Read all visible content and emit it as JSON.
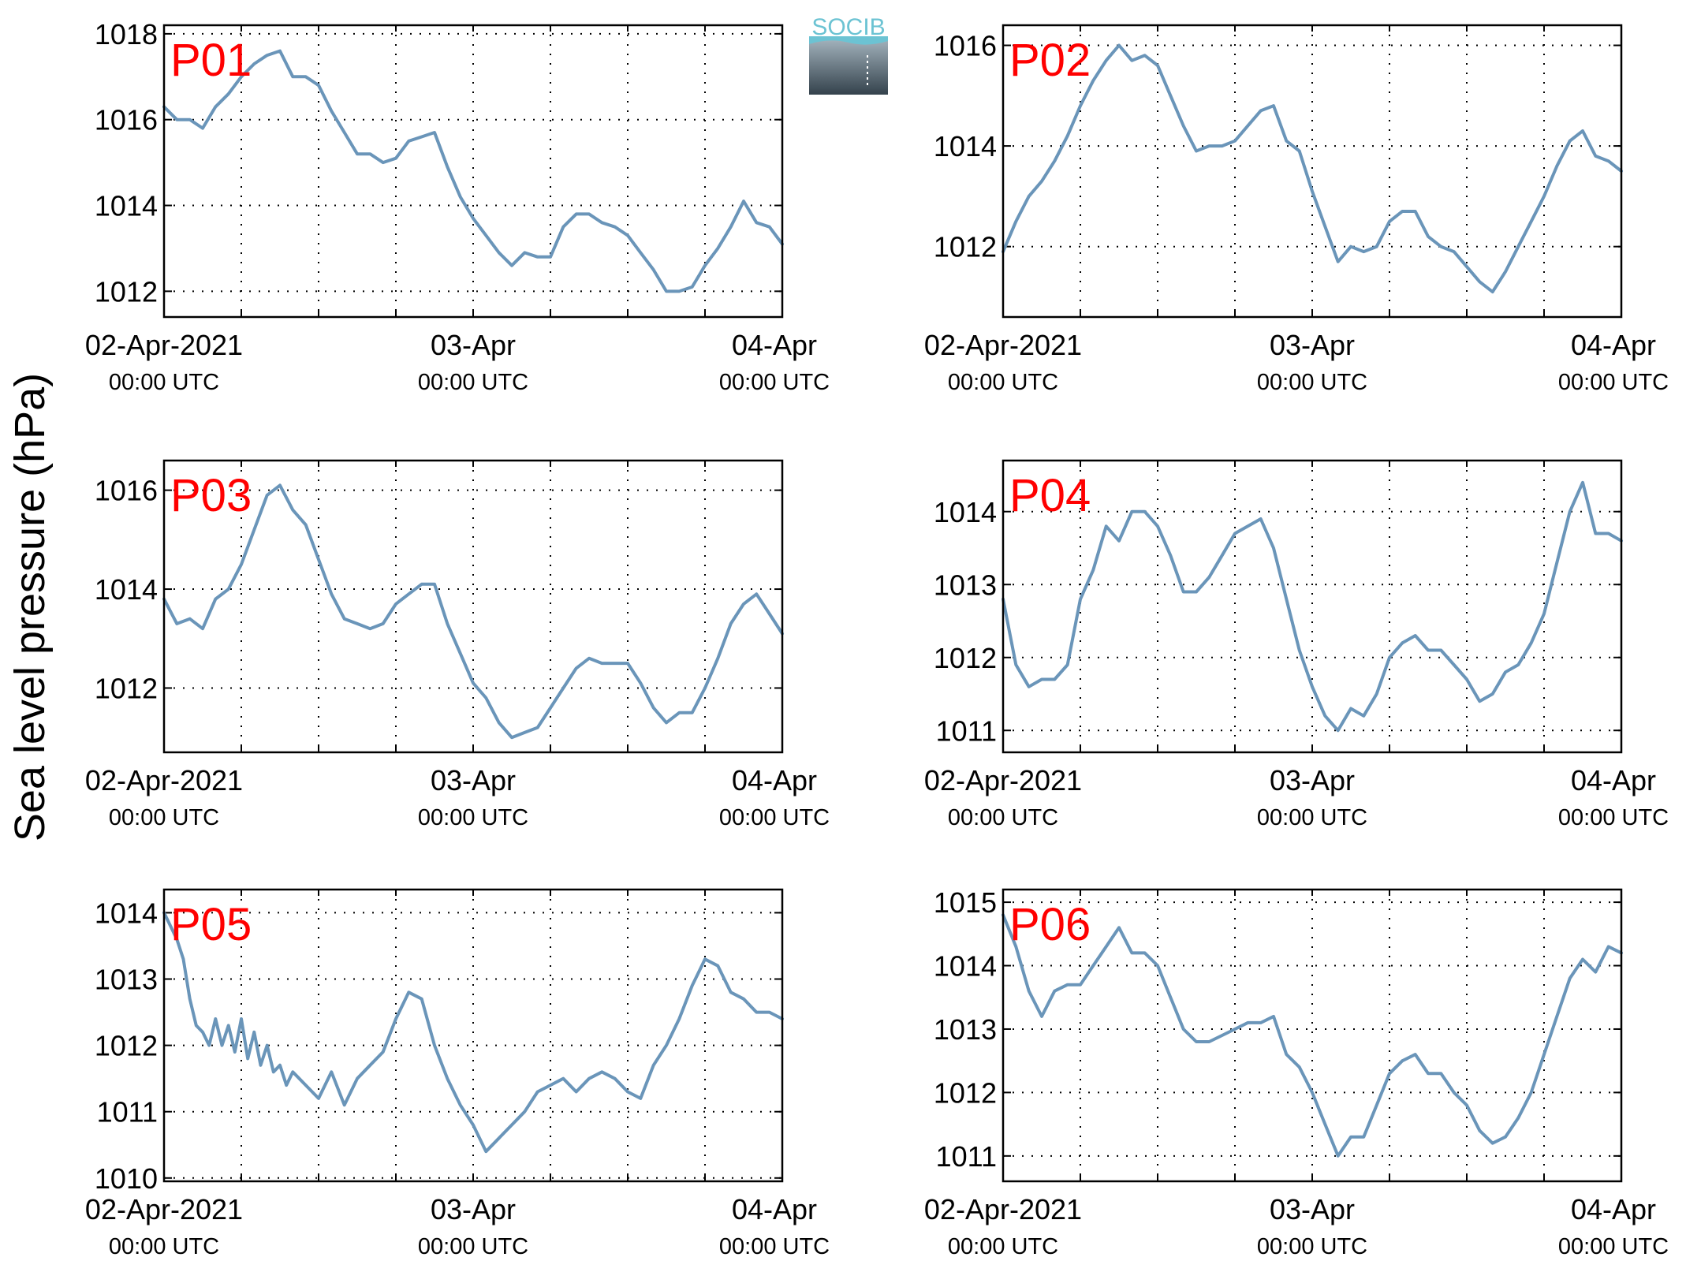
{
  "ylabel": "Sea level pressure (hPa)",
  "logo": {
    "text": "SOCIB",
    "color_top": "#6cc3d3",
    "color_bottom": "#34424c"
  },
  "line_color": "#6a95b9",
  "label_color": "#ff0000",
  "x_ticks": [
    {
      "main": "02-Apr-2021",
      "sub": "00:00 UTC"
    },
    {
      "main": "03-Apr",
      "sub": "00:00 UTC"
    },
    {
      "main": "04-Apr",
      "sub": "00:00 UTC"
    }
  ],
  "chart_data": [
    {
      "type": "line",
      "name": "P01",
      "xlim": [
        "2021-04-02 00:00",
        "2021-04-04 00:00"
      ],
      "ylim": [
        1011.4,
        1018.2
      ],
      "yticks": [
        1012,
        1014,
        1016,
        1018
      ],
      "grid": true,
      "x_hours": [
        0,
        1,
        2,
        3,
        4,
        5,
        6,
        7,
        8,
        9,
        10,
        11,
        12,
        13,
        14,
        15,
        16,
        17,
        18,
        19,
        20,
        21,
        22,
        23,
        24,
        25,
        26,
        27,
        28,
        29,
        30,
        31,
        32,
        33,
        34,
        35,
        36,
        37,
        38,
        39,
        40,
        41,
        42,
        43,
        44,
        45,
        46,
        47,
        48
      ],
      "y": [
        1016.3,
        1016.0,
        1016.0,
        1015.8,
        1016.3,
        1016.6,
        1017.0,
        1017.3,
        1017.5,
        1017.6,
        1017.0,
        1017.0,
        1016.8,
        1016.2,
        1015.7,
        1015.2,
        1015.2,
        1015.0,
        1015.1,
        1015.5,
        1015.6,
        1015.7,
        1014.9,
        1014.2,
        1013.7,
        1013.3,
        1012.9,
        1012.6,
        1012.9,
        1012.8,
        1012.8,
        1013.5,
        1013.8,
        1013.8,
        1013.6,
        1013.5,
        1013.3,
        1012.9,
        1012.5,
        1012.0,
        1012.0,
        1012.1,
        1012.6,
        1013.0,
        1013.5,
        1014.1,
        1013.6,
        1013.5,
        1013.1
      ]
    },
    {
      "type": "line",
      "name": "P02",
      "xlim": [
        "2021-04-02 00:00",
        "2021-04-04 00:00"
      ],
      "ylim": [
        1010.6,
        1016.4
      ],
      "yticks": [
        1012,
        1014,
        1016
      ],
      "grid": true,
      "x_hours": [
        0,
        1,
        2,
        3,
        4,
        5,
        6,
        7,
        8,
        9,
        10,
        11,
        12,
        13,
        14,
        15,
        16,
        17,
        18,
        19,
        20,
        21,
        22,
        23,
        24,
        25,
        26,
        27,
        28,
        29,
        30,
        31,
        32,
        33,
        34,
        35,
        36,
        37,
        38,
        39,
        40,
        41,
        42,
        43,
        44,
        45,
        46,
        47,
        48
      ],
      "y": [
        1011.9,
        1012.5,
        1013.0,
        1013.3,
        1013.7,
        1014.2,
        1014.8,
        1015.3,
        1015.7,
        1016.0,
        1015.7,
        1015.8,
        1015.6,
        1015.0,
        1014.4,
        1013.9,
        1014.0,
        1014.0,
        1014.1,
        1014.4,
        1014.7,
        1014.8,
        1014.1,
        1013.9,
        1013.1,
        1012.4,
        1011.7,
        1012.0,
        1011.9,
        1012.0,
        1012.5,
        1012.7,
        1012.7,
        1012.2,
        1012.0,
        1011.9,
        1011.6,
        1011.3,
        1011.1,
        1011.5,
        1012.0,
        1012.5,
        1013.0,
        1013.6,
        1014.1,
        1014.3,
        1013.8,
        1013.7,
        1013.5
      ]
    },
    {
      "type": "line",
      "name": "P03",
      "xlim": [
        "2021-04-02 00:00",
        "2021-04-04 00:00"
      ],
      "ylim": [
        1010.7,
        1016.6
      ],
      "yticks": [
        1012,
        1014,
        1016
      ],
      "grid": true,
      "x_hours": [
        0,
        1,
        2,
        3,
        4,
        5,
        6,
        7,
        8,
        9,
        10,
        11,
        12,
        13,
        14,
        15,
        16,
        17,
        18,
        19,
        20,
        21,
        22,
        23,
        24,
        25,
        26,
        27,
        28,
        29,
        30,
        31,
        32,
        33,
        34,
        35,
        36,
        37,
        38,
        39,
        40,
        41,
        42,
        43,
        44,
        45,
        46,
        47,
        48
      ],
      "y": [
        1013.8,
        1013.3,
        1013.4,
        1013.2,
        1013.8,
        1014.0,
        1014.5,
        1015.2,
        1015.9,
        1016.1,
        1015.6,
        1015.3,
        1014.6,
        1013.9,
        1013.4,
        1013.3,
        1013.2,
        1013.3,
        1013.7,
        1013.9,
        1014.1,
        1014.1,
        1013.3,
        1012.7,
        1012.1,
        1011.8,
        1011.3,
        1011.0,
        1011.1,
        1011.2,
        1011.6,
        1012.0,
        1012.4,
        1012.6,
        1012.5,
        1012.5,
        1012.5,
        1012.1,
        1011.6,
        1011.3,
        1011.5,
        1011.5,
        1012.0,
        1012.6,
        1013.3,
        1013.7,
        1013.9,
        1013.5,
        1013.1
      ]
    },
    {
      "type": "line",
      "name": "P04",
      "xlim": [
        "2021-04-02 00:00",
        "2021-04-04 00:00"
      ],
      "ylim": [
        1010.7,
        1014.7
      ],
      "yticks": [
        1011,
        1012,
        1013,
        1014
      ],
      "grid": true,
      "x_hours": [
        0,
        1,
        2,
        3,
        4,
        5,
        6,
        7,
        8,
        9,
        10,
        11,
        12,
        13,
        14,
        15,
        16,
        17,
        18,
        19,
        20,
        21,
        22,
        23,
        24,
        25,
        26,
        27,
        28,
        29,
        30,
        31,
        32,
        33,
        34,
        35,
        36,
        37,
        38,
        39,
        40,
        41,
        42,
        43,
        44,
        45,
        46,
        47,
        48
      ],
      "y": [
        1012.8,
        1011.9,
        1011.6,
        1011.7,
        1011.7,
        1011.9,
        1012.8,
        1013.2,
        1013.8,
        1013.6,
        1014.0,
        1014.0,
        1013.8,
        1013.4,
        1012.9,
        1012.9,
        1013.1,
        1013.4,
        1013.7,
        1013.8,
        1013.9,
        1013.5,
        1012.8,
        1012.1,
        1011.6,
        1011.2,
        1011.0,
        1011.3,
        1011.2,
        1011.5,
        1012.0,
        1012.2,
        1012.3,
        1012.1,
        1012.1,
        1011.9,
        1011.7,
        1011.4,
        1011.5,
        1011.8,
        1011.9,
        1012.2,
        1012.6,
        1013.3,
        1014.0,
        1014.4,
        1013.7,
        1013.7,
        1013.6
      ]
    },
    {
      "type": "line",
      "name": "P05",
      "xlim": [
        "2021-04-02 00:00",
        "2021-04-04 00:00"
      ],
      "ylim": [
        1009.95,
        1014.35
      ],
      "yticks": [
        1010,
        1011,
        1012,
        1013,
        1014
      ],
      "grid": true,
      "x_hours": [
        0,
        0.5,
        1,
        1.5,
        2,
        2.5,
        3,
        3.5,
        4,
        4.5,
        5,
        5.5,
        6,
        6.5,
        7,
        7.5,
        8,
        8.5,
        9,
        9.5,
        10,
        11,
        12,
        13,
        14,
        15,
        16,
        17,
        18,
        19,
        20,
        21,
        22,
        23,
        24,
        25,
        26,
        27,
        28,
        29,
        30,
        31,
        32,
        33,
        34,
        35,
        36,
        37,
        38,
        39,
        40,
        41,
        42,
        43,
        44,
        45,
        46,
        47,
        48
      ],
      "y": [
        1014.0,
        1013.8,
        1013.6,
        1013.3,
        1012.7,
        1012.3,
        1012.2,
        1012.0,
        1012.4,
        1012.0,
        1012.3,
        1011.9,
        1012.4,
        1011.8,
        1012.2,
        1011.7,
        1012.0,
        1011.6,
        1011.7,
        1011.4,
        1011.6,
        1011.4,
        1011.2,
        1011.6,
        1011.1,
        1011.5,
        1011.7,
        1011.9,
        1012.4,
        1012.8,
        1012.7,
        1012.0,
        1011.5,
        1011.1,
        1010.8,
        1010.4,
        1010.6,
        1010.8,
        1011.0,
        1011.3,
        1011.4,
        1011.5,
        1011.3,
        1011.5,
        1011.6,
        1011.5,
        1011.3,
        1011.2,
        1011.7,
        1012.0,
        1012.4,
        1012.9,
        1013.3,
        1013.2,
        1012.8,
        1012.7,
        1012.5,
        1012.5,
        1012.4
      ]
    },
    {
      "type": "line",
      "name": "P06",
      "xlim": [
        "2021-04-02 00:00",
        "2021-04-04 00:00"
      ],
      "ylim": [
        1010.6,
        1015.2
      ],
      "yticks": [
        1011,
        1012,
        1013,
        1014,
        1015
      ],
      "grid": true,
      "x_hours": [
        0,
        1,
        2,
        3,
        4,
        5,
        6,
        7,
        8,
        9,
        10,
        11,
        12,
        13,
        14,
        15,
        16,
        17,
        18,
        19,
        20,
        21,
        22,
        23,
        24,
        25,
        26,
        27,
        28,
        29,
        30,
        31,
        32,
        33,
        34,
        35,
        36,
        37,
        38,
        39,
        40,
        41,
        42,
        43,
        44,
        45,
        46,
        47,
        48
      ],
      "y": [
        1014.8,
        1014.3,
        1013.6,
        1013.2,
        1013.6,
        1013.7,
        1013.7,
        1014.0,
        1014.3,
        1014.6,
        1014.2,
        1014.2,
        1014.0,
        1013.5,
        1013.0,
        1012.8,
        1012.8,
        1012.9,
        1013.0,
        1013.1,
        1013.1,
        1013.2,
        1012.6,
        1012.4,
        1012.0,
        1011.5,
        1011.0,
        1011.3,
        1011.3,
        1011.8,
        1012.3,
        1012.5,
        1012.6,
        1012.3,
        1012.3,
        1012.0,
        1011.8,
        1011.4,
        1011.2,
        1011.3,
        1011.6,
        1012.0,
        1012.6,
        1013.2,
        1013.8,
        1014.1,
        1013.9,
        1014.3,
        1014.2
      ]
    }
  ]
}
